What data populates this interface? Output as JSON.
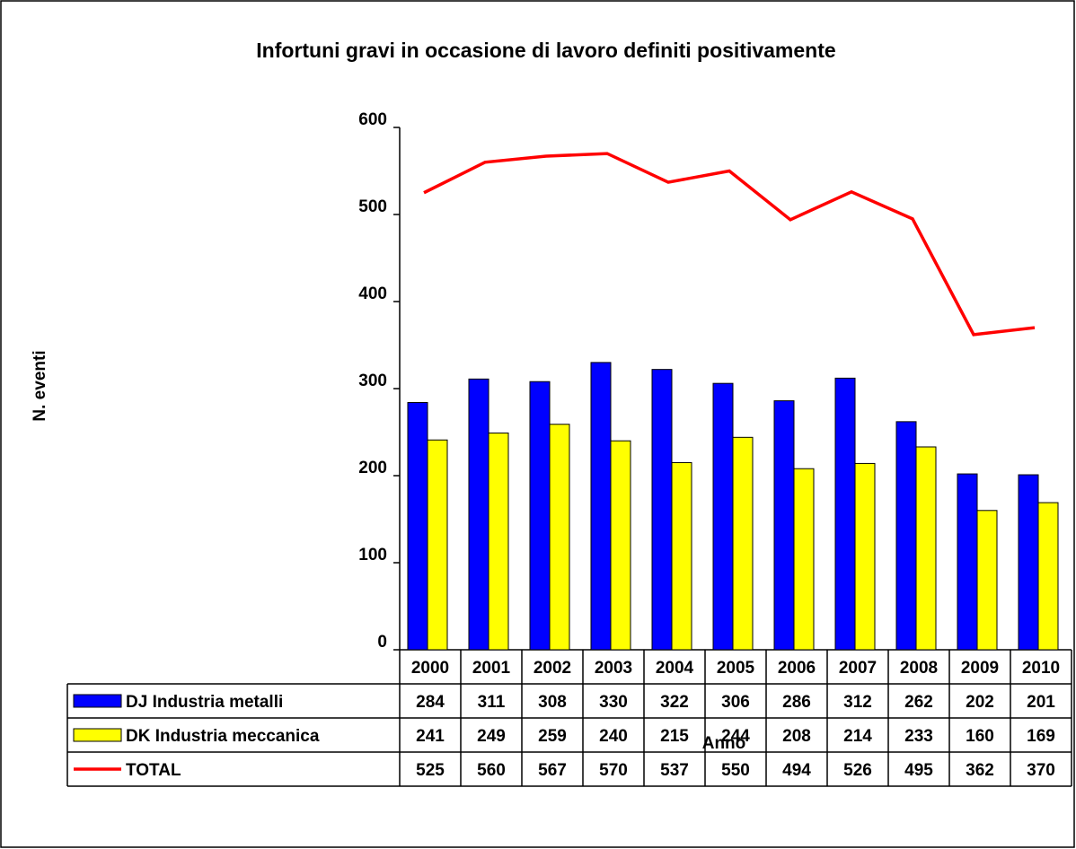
{
  "chart_data": {
    "type": "bar_line_table",
    "title": "Infortuni gravi in occasione di lavoro definiti positivamente",
    "y_label": "N. eventi",
    "x_label": "Anno",
    "categories": [
      "2000",
      "2001",
      "2002",
      "2003",
      "2004",
      "2005",
      "2006",
      "2007",
      "2008",
      "2009",
      "2010"
    ],
    "series": [
      {
        "name": "DJ Industria metalli",
        "color": "#0000ff",
        "kind": "bar",
        "values": [
          284,
          311,
          308,
          330,
          322,
          306,
          286,
          312,
          262,
          202,
          201
        ]
      },
      {
        "name": "DK Industria meccanica",
        "color": "#ffff00",
        "kind": "bar",
        "values": [
          241,
          249,
          259,
          240,
          215,
          244,
          208,
          214,
          233,
          160,
          169
        ]
      },
      {
        "name": "TOTAL",
        "color": "#ff0000",
        "kind": "line",
        "values": [
          525,
          560,
          567,
          570,
          537,
          550,
          494,
          526,
          495,
          362,
          370
        ]
      }
    ],
    "ylim": [
      0,
      600
    ],
    "yticks": [
      0,
      100,
      200,
      300,
      400,
      500,
      600
    ],
    "grid": false
  }
}
